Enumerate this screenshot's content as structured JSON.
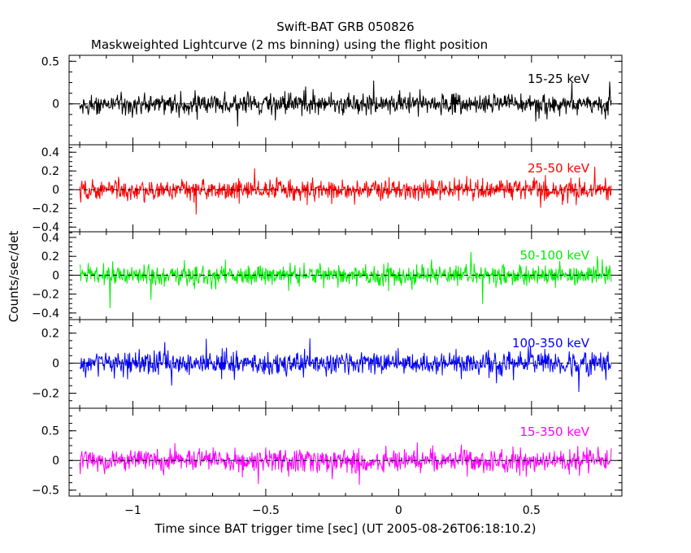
{
  "title": "Swift-BAT GRB 050826",
  "subtitle": "Maskweighted Lightcurve (2 ms binning) using the flight position",
  "chart_data": {
    "type": "line",
    "xlabel": "Time since BAT trigger time [sec] (UT 2005-08-26T06:18:10.2)",
    "ylabel": "Counts/sec/det",
    "xlim": [
      -1.24,
      0.84
    ],
    "x_ticks": [
      -1,
      -0.5,
      0,
      0.5
    ],
    "x_tick_labels": [
      "−1",
      "−0.5",
      "0",
      "0.5"
    ],
    "x_range": [
      -1.2,
      0.8
    ],
    "bin_width": 0.002,
    "zero_line": true,
    "panels": [
      {
        "name": "15-25 keV",
        "color": "#000000",
        "ylim": [
          -0.48,
          0.57
        ],
        "yticks": [
          0,
          0.5
        ],
        "ytick_labels": [
          "0",
          "0.5"
        ],
        "noise_amplitude": 0.12
      },
      {
        "name": "25-50 keV",
        "color": "#ff0000",
        "ylim": [
          -0.45,
          0.48
        ],
        "yticks": [
          -0.4,
          -0.2,
          0,
          0.2,
          0.4
        ],
        "ytick_labels": [
          "−0.4",
          "−0.2",
          "0",
          "0.2",
          "0.4"
        ],
        "noise_amplitude": 0.11
      },
      {
        "name": "50-100 keV",
        "color": "#00ee00",
        "ylim": [
          -0.47,
          0.46
        ],
        "yticks": [
          -0.4,
          -0.2,
          0,
          0.2,
          0.4
        ],
        "ytick_labels": [
          "−0.4",
          "−0.2",
          "0",
          "0.2",
          "0.4"
        ],
        "noise_amplitude": 0.11
      },
      {
        "name": "100-350 keV",
        "color": "#0000ff",
        "ylim": [
          -0.3,
          0.29
        ],
        "yticks": [
          -0.2,
          0,
          0.2
        ],
        "ytick_labels": [
          "−0.2",
          "0",
          "0.2"
        ],
        "noise_amplitude": 0.075
      },
      {
        "name": "15-350 keV",
        "color": "#ff00ff",
        "ylim": [
          -0.6,
          0.88
        ],
        "yticks": [
          -0.5,
          0,
          0.5
        ],
        "ytick_labels": [
          "−0.5",
          "0",
          "0.5"
        ],
        "noise_amplitude": 0.2
      }
    ]
  }
}
